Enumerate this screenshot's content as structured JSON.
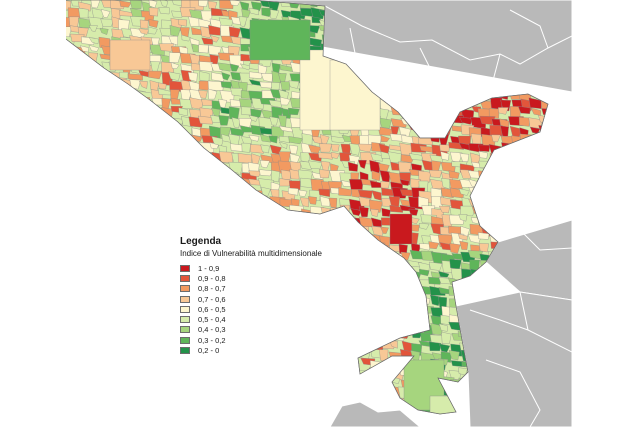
{
  "legend": {
    "title": "Legenda",
    "subtitle": "Indice di Vulnerabilità multidimensionale",
    "classes": [
      {
        "label": "1 - 0,9",
        "color": "#c9191e"
      },
      {
        "label": "0,9 - 0,8",
        "color": "#e2553b"
      },
      {
        "label": "0,8 - 0,7",
        "color": "#f29a61"
      },
      {
        "label": "0,7 - 0,6",
        "color": "#f8c896"
      },
      {
        "label": "0,6 - 0,5",
        "color": "#fdf6cf"
      },
      {
        "label": "0,5 - 0,4",
        "color": "#d6ecab"
      },
      {
        "label": "0,4 - 0,3",
        "color": "#a6d57e"
      },
      {
        "label": "0,3 - 0,2",
        "color": "#5fb55a"
      },
      {
        "label": "0,2 - 0",
        "color": "#23924a"
      }
    ]
  },
  "map": {
    "sea_color": "#ffffff",
    "land_color": "#b9b9b9"
  }
}
